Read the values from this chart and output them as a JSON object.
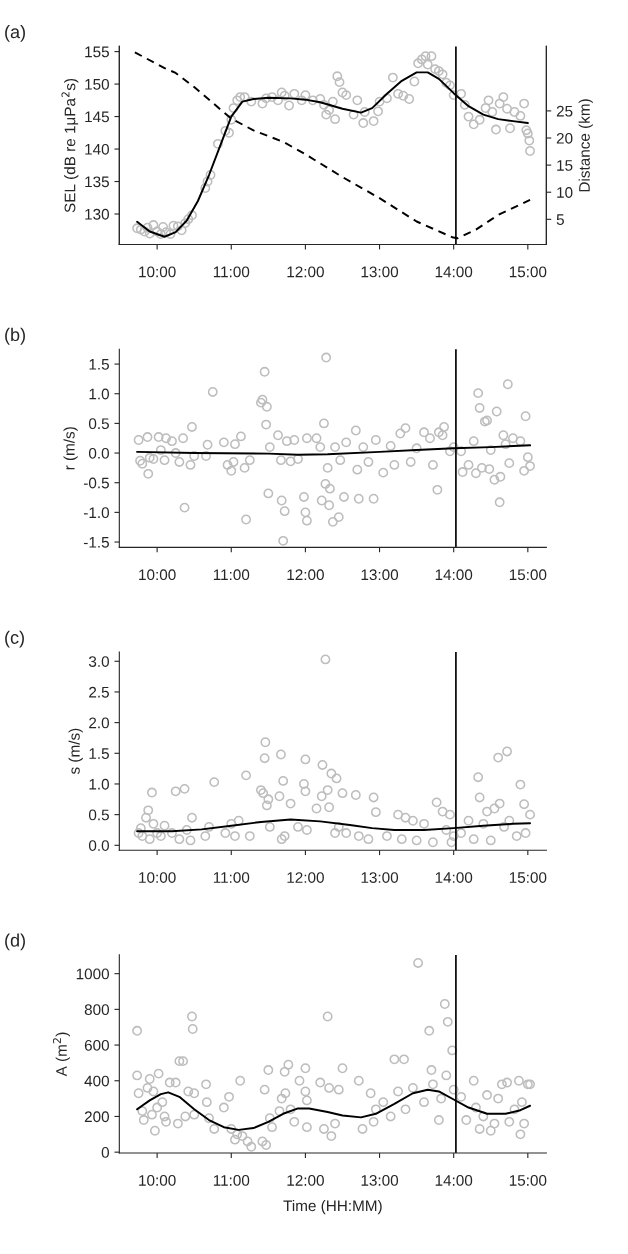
{
  "chart_data": [
    {
      "type": "scatter",
      "title": "(a)",
      "ylabel": "SEL (dB re 1μPa$^{2}$s)",
      "y2label": "Distance (km)",
      "xlim": [
        9.49,
        15.25
      ],
      "xticks": [
        {
          "value": 10,
          "label": "10:00"
        },
        {
          "value": 11,
          "label": "11:00"
        },
        {
          "value": 12,
          "label": "12:00"
        },
        {
          "value": 13,
          "label": "13:00"
        },
        {
          "value": 14,
          "label": "14:00"
        },
        {
          "value": 15,
          "label": "15:00"
        }
      ],
      "ylim": [
        125.3,
        155.8
      ],
      "yticks": [
        130,
        135,
        140,
        145,
        150,
        155
      ],
      "y2lim": [
        0.35,
        36.9
      ],
      "y2ticks": [
        5,
        10,
        15,
        20,
        25
      ],
      "grid": false,
      "legend": false,
      "ref_lines": [
        {
          "axis": "x",
          "value": 14.03,
          "color": "#000000"
        }
      ],
      "series": [
        {
          "marker": "circle",
          "color": "#bdbdbd",
          "x": [
            9.73,
            9.78,
            9.83,
            9.87,
            9.9,
            9.95,
            10.0,
            10.05,
            10.08,
            10.12,
            10.18,
            10.22,
            10.28,
            10.33,
            10.38,
            10.42,
            10.47,
            10.65,
            10.68,
            10.72,
            10.82,
            10.92,
            10.97,
            11.0,
            11.03,
            11.08,
            11.12,
            11.18,
            11.27,
            11.42,
            11.47,
            11.55,
            11.63,
            11.68,
            11.72,
            11.78,
            11.85,
            11.95,
            12.0,
            12.1,
            12.2,
            12.25,
            12.28,
            12.32,
            12.37,
            12.4,
            12.43,
            12.46,
            12.5,
            12.55,
            12.65,
            12.7,
            12.78,
            12.8,
            12.92,
            12.98,
            13.0,
            13.1,
            13.18,
            13.25,
            13.32,
            13.4,
            13.47,
            13.52,
            13.57,
            13.62,
            13.65,
            13.7,
            13.75,
            13.8,
            13.85,
            13.9,
            13.95,
            14.0,
            14.1,
            14.15,
            14.2,
            14.27,
            14.35,
            14.43,
            14.47,
            14.52,
            14.57,
            14.62,
            14.67,
            14.72,
            14.76,
            14.82,
            14.9,
            14.95,
            14.98,
            15.0,
            15.02,
            15.03
          ],
          "values": [
            127.8,
            127.6,
            127.3,
            127.9,
            127,
            128.3,
            127.3,
            126.9,
            128,
            127.2,
            126.9,
            128.2,
            128.1,
            127.5,
            128.6,
            129.2,
            129.8,
            134,
            135,
            136,
            140.8,
            142.8,
            142.5,
            144.5,
            146.3,
            147.5,
            148,
            148,
            147.3,
            147,
            147.8,
            148,
            147.5,
            148.7,
            148.2,
            146.7,
            148.5,
            147.5,
            148.3,
            147.5,
            147.7,
            146.8,
            145.3,
            146,
            147.3,
            144.6,
            151.2,
            150.3,
            148.7,
            148.3,
            145.3,
            147.5,
            144,
            145.7,
            144.3,
            145.8,
            147.3,
            147.8,
            151,
            148.5,
            148.2,
            147.7,
            150.4,
            153.2,
            153.8,
            154.3,
            153,
            154.3,
            152.3,
            152,
            151.5,
            150.2,
            149.8,
            148.3,
            148.5,
            146.8,
            145,
            143.8,
            144.5,
            146.3,
            147.5,
            145.7,
            143,
            147,
            148,
            146.2,
            143.2,
            145.7,
            145.1,
            147,
            142.9,
            142.4,
            141.3,
            139.7
          ]
        },
        {
          "type": "line",
          "color": "#000000",
          "x": [
            9.73,
            9.9,
            10.1,
            10.25,
            10.4,
            10.55,
            10.7,
            10.85,
            11.0,
            11.15,
            11.3,
            11.5,
            11.8,
            12.0,
            12.2,
            12.5,
            12.75,
            12.9,
            13.1,
            13.3,
            13.5,
            13.65,
            13.8,
            14.0,
            14.2,
            14.4,
            14.6,
            14.8,
            15.0
          ],
          "values": [
            128.8,
            127.3,
            126.5,
            127.2,
            129,
            132,
            136,
            140.5,
            145,
            147.3,
            147.7,
            147.9,
            147.8,
            147.6,
            147.2,
            146.2,
            145.6,
            146.3,
            148.5,
            150.5,
            151.8,
            151.8,
            150.8,
            148.6,
            146.6,
            145.3,
            144.6,
            144.3,
            144.0
          ]
        },
        {
          "type": "line",
          "axis": "y2",
          "line_style": "dashed",
          "color": "#000000",
          "x": [
            9.7,
            10.1,
            10.25,
            10.5,
            10.8,
            11.0,
            11.3,
            11.7,
            12.0,
            12.5,
            13.0,
            13.5,
            13.98,
            14.05,
            14.3,
            14.6,
            15.03
          ],
          "values": [
            35.8,
            32.9,
            32,
            29.4,
            25.9,
            23.6,
            21.4,
            19.3,
            17,
            12.8,
            8.9,
            4.6,
            1.7,
            1.5,
            3.1,
            5.8,
            8.6
          ]
        }
      ]
    },
    {
      "type": "scatter",
      "title": "(b)",
      "ylabel": "r (m/s)",
      "xlim": [
        9.49,
        15.25
      ],
      "xticks": [
        {
          "value": 10,
          "label": "10:00"
        },
        {
          "value": 11,
          "label": "11:00"
        },
        {
          "value": 12,
          "label": "12:00"
        },
        {
          "value": 13,
          "label": "13:00"
        },
        {
          "value": 14,
          "label": "14:00"
        },
        {
          "value": 15,
          "label": "15:00"
        }
      ],
      "ylim": [
        -1.59,
        1.75
      ],
      "yticks": [
        {
          "value": -1.5,
          "label": "-1.5"
        },
        {
          "value": -1.0,
          "label": "-1.0"
        },
        {
          "value": -0.5,
          "label": "-0.5"
        },
        {
          "value": 0,
          "label": "0.0"
        },
        {
          "value": 0.5,
          "label": "0.5"
        },
        {
          "value": 1.0,
          "label": "1.0"
        },
        {
          "value": 1.5,
          "label": "1.5"
        }
      ],
      "grid": false,
      "legend": false,
      "ref_lines": [
        {
          "axis": "x",
          "value": 14.03,
          "color": "#000000"
        }
      ],
      "series": [
        {
          "marker": "circle",
          "color": "#bdbdbd",
          "x": [
            9.75,
            9.77,
            9.8,
            9.87,
            9.88,
            9.9,
            9.95,
            10.02,
            10.05,
            10.1,
            10.12,
            10.2,
            10.25,
            10.3,
            10.35,
            10.37,
            10.45,
            10.47,
            10.5,
            10.66,
            10.68,
            10.75,
            10.9,
            10.95,
            11.0,
            11.03,
            11.05,
            11.13,
            11.18,
            11.2,
            11.25,
            11.4,
            11.42,
            11.45,
            11.47,
            11.48,
            11.5,
            11.52,
            11.63,
            11.67,
            11.68,
            11.7,
            11.72,
            11.75,
            11.8,
            11.85,
            11.9,
            11.98,
            12.0,
            12.02,
            12.02,
            12.15,
            12.2,
            12.22,
            12.25,
            12.27,
            12.28,
            12.3,
            12.32,
            12.33,
            12.37,
            12.4,
            12.45,
            12.47,
            12.52,
            12.55,
            12.68,
            12.7,
            12.72,
            12.78,
            12.85,
            12.92,
            12.95,
            13.05,
            13.15,
            13.2,
            13.28,
            13.35,
            13.42,
            13.5,
            13.6,
            13.68,
            13.72,
            13.78,
            13.8,
            13.85,
            13.87,
            13.95,
            14.0,
            14.1,
            14.12,
            14.2,
            14.27,
            14.3,
            14.33,
            14.35,
            14.38,
            14.42,
            14.45,
            14.48,
            14.5,
            14.55,
            14.58,
            14.62,
            14.63,
            14.67,
            14.7,
            14.73,
            14.75,
            14.8,
            14.9,
            14.95,
            14.97,
            15.0,
            15.03
          ],
          "values": [
            0.22,
            -0.13,
            -0.18,
            0.27,
            -0.35,
            -0.08,
            -0.1,
            0.27,
            0.05,
            -0.12,
            0.25,
            0.2,
            0,
            -0.15,
            0.25,
            -0.92,
            -0.2,
            0.44,
            -0.05,
            -0.05,
            0.14,
            1.03,
            0.18,
            -0.2,
            -0.3,
            -0.15,
            0.15,
            0.28,
            -0.25,
            -1.12,
            -0.12,
            0.85,
            0.9,
            1.37,
            0.48,
            0.78,
            -0.68,
            0.1,
            0.3,
            -0.12,
            -0.8,
            -1.48,
            -0.98,
            0.2,
            -0.14,
            0.22,
            -0.1,
            -0.74,
            -1.0,
            -1.14,
            0.25,
            0.25,
            0.1,
            -0.8,
            0.5,
            -0.52,
            1.61,
            -0.25,
            -0.88,
            -0.6,
            -1.16,
            0.1,
            -1.08,
            -0.12,
            -0.74,
            0.18,
            0.38,
            -0.28,
            -0.77,
            0.1,
            -0.15,
            -0.77,
            0.22,
            -0.33,
            0.12,
            -0.2,
            0.33,
            0.42,
            -0.15,
            0.08,
            0.35,
            0.25,
            -0.2,
            -0.62,
            0.35,
            0.3,
            0.44,
            0.03,
            0.1,
            0.03,
            -0.32,
            -0.2,
            0.2,
            -0.34,
            1.01,
            0.76,
            -0.25,
            0.53,
            0.55,
            -0.27,
            0.05,
            -0.45,
            0.7,
            -0.83,
            -0.4,
            0.3,
            0.15,
            1.16,
            -0.17,
            0.25,
            0.2,
            -0.3,
            0.62,
            -0.07,
            -0.22
          ]
        },
        {
          "type": "line",
          "color": "#000000",
          "x": [
            9.73,
            10.5,
            11.5,
            11.9,
            12.3,
            13.0,
            13.5,
            14.0,
            14.5,
            15.03
          ],
          "values": [
            0.02,
            0.0,
            -0.01,
            -0.03,
            -0.02,
            0.02,
            0.05,
            0.08,
            0.1,
            0.13
          ]
        }
      ]
    },
    {
      "type": "scatter",
      "title": "(c)",
      "ylabel": "s (m/s)",
      "xlim": [
        9.49,
        15.25
      ],
      "xticks": [
        {
          "value": 10,
          "label": "10:00"
        },
        {
          "value": 11,
          "label": "11:00"
        },
        {
          "value": 12,
          "label": "12:00"
        },
        {
          "value": 13,
          "label": "13:00"
        },
        {
          "value": 14,
          "label": "14:00"
        },
        {
          "value": 15,
          "label": "15:00"
        }
      ],
      "ylim": [
        -0.08,
        3.15
      ],
      "yticks": [
        {
          "value": 0,
          "label": "0.0"
        },
        {
          "value": 0.5,
          "label": "0.5"
        },
        {
          "value": 1.0,
          "label": "1.0"
        },
        {
          "value": 1.5,
          "label": "1.5"
        },
        {
          "value": 2.0,
          "label": "2.0"
        },
        {
          "value": 2.5,
          "label": "2.5"
        },
        {
          "value": 3.0,
          "label": "3.0"
        }
      ],
      "grid": false,
      "legend": false,
      "ref_lines": [
        {
          "axis": "x",
          "value": 14.03,
          "color": "#000000"
        }
      ],
      "series": [
        {
          "marker": "circle",
          "color": "#bdbdbd",
          "x": [
            9.75,
            9.78,
            9.8,
            9.85,
            9.88,
            9.9,
            9.93,
            9.95,
            10.0,
            10.05,
            10.1,
            10.2,
            10.25,
            10.3,
            10.37,
            10.4,
            10.45,
            10.47,
            10.65,
            10.7,
            10.77,
            10.92,
            11.0,
            11.05,
            11.1,
            11.2,
            11.25,
            11.4,
            11.43,
            11.45,
            11.46,
            11.48,
            11.5,
            11.52,
            11.65,
            11.67,
            11.68,
            11.7,
            11.72,
            11.8,
            11.9,
            11.98,
            12.0,
            12.0,
            12.02,
            12.15,
            12.22,
            12.23,
            12.27,
            12.3,
            12.32,
            12.35,
            12.4,
            12.42,
            12.45,
            12.5,
            12.55,
            12.68,
            12.72,
            12.85,
            12.92,
            12.95,
            13.1,
            13.25,
            13.3,
            13.35,
            13.45,
            13.5,
            13.6,
            13.72,
            13.77,
            13.85,
            13.9,
            13.95,
            13.97,
            14.0,
            14.1,
            14.2,
            14.27,
            14.33,
            14.35,
            14.4,
            14.45,
            14.5,
            14.55,
            14.6,
            14.62,
            14.68,
            14.72,
            14.75,
            14.85,
            14.9,
            14.95,
            14.97,
            15.03
          ],
          "values": [
            0.2,
            0.28,
            0.15,
            0.45,
            0.57,
            0.1,
            0.86,
            0.35,
            0.2,
            0.15,
            0.32,
            0.2,
            0.88,
            0.1,
            0.92,
            0.25,
            0.08,
            0.45,
            0.15,
            0.3,
            1.03,
            0.2,
            0.35,
            0.15,
            0.4,
            1.14,
            0.15,
            0.9,
            0.85,
            1.42,
            1.68,
            0.65,
            0.75,
            0.3,
            0.8,
            1.48,
            0.1,
            1.05,
            0.15,
            0.68,
            0.3,
            1.0,
            0.88,
            1.4,
            0.25,
            0.6,
            0.8,
            1.31,
            3.03,
            0.9,
            0.62,
            1.17,
            0.2,
            1.09,
            0.3,
            0.85,
            0.2,
            0.82,
            0.15,
            0.1,
            0.78,
            0.54,
            0.15,
            0.5,
            0.1,
            0.45,
            0.4,
            0.08,
            0.35,
            0.05,
            0.7,
            0.55,
            0.25,
            0.5,
            0.05,
            0.15,
            0.2,
            0.4,
            0.1,
            1.11,
            0.78,
            0.35,
            0.55,
            0.08,
            0.6,
            1.43,
            0.68,
            0.3,
            1.53,
            0.4,
            0.15,
            0.99,
            0.67,
            0.2,
            0.5
          ]
        },
        {
          "type": "line",
          "color": "#000000",
          "x": [
            9.73,
            10.2,
            10.6,
            11.0,
            11.4,
            11.8,
            12.2,
            12.6,
            12.9,
            13.2,
            13.6,
            14.0,
            14.4,
            14.8,
            15.03
          ],
          "values": [
            0.23,
            0.23,
            0.26,
            0.32,
            0.38,
            0.42,
            0.39,
            0.33,
            0.28,
            0.25,
            0.25,
            0.28,
            0.32,
            0.35,
            0.36
          ]
        }
      ]
    },
    {
      "type": "scatter",
      "title": "(d)",
      "ylabel": "A (m$^{2}$)",
      "xlabel": "Time (HH:MM)",
      "xlim": [
        9.49,
        15.25
      ],
      "xticks": [
        {
          "value": 10,
          "label": "10:00"
        },
        {
          "value": 11,
          "label": "11:00"
        },
        {
          "value": 12,
          "label": "12:00"
        },
        {
          "value": 13,
          "label": "13:00"
        },
        {
          "value": 14,
          "label": "14:00"
        },
        {
          "value": 15,
          "label": "15:00"
        }
      ],
      "ylim": [
        -5,
        1105
      ],
      "yticks": [
        0,
        200,
        400,
        600,
        800,
        1000
      ],
      "grid": false,
      "legend": false,
      "ref_lines": [
        {
          "axis": "x",
          "value": 14.03,
          "color": "#000000"
        }
      ],
      "series": [
        {
          "marker": "circle",
          "color": "#bdbdbd",
          "x": [
            9.73,
            9.73,
            9.75,
            9.8,
            9.82,
            9.87,
            9.9,
            9.93,
            9.95,
            9.97,
            10.0,
            10.02,
            10.07,
            10.1,
            10.12,
            10.17,
            10.25,
            10.28,
            10.3,
            10.35,
            10.38,
            10.42,
            10.47,
            10.48,
            10.5,
            10.5,
            10.66,
            10.67,
            10.7,
            10.77,
            10.9,
            10.97,
            11.0,
            11.05,
            11.08,
            11.12,
            11.15,
            11.22,
            11.27,
            11.42,
            11.45,
            11.47,
            11.5,
            11.52,
            11.55,
            11.65,
            11.68,
            11.72,
            11.73,
            11.77,
            11.8,
            11.85,
            11.92,
            12.0,
            12.0,
            12.02,
            12.02,
            12.2,
            12.25,
            12.3,
            12.32,
            12.35,
            12.4,
            12.45,
            12.5,
            12.72,
            12.77,
            12.88,
            12.92,
            12.95,
            13.05,
            13.15,
            13.2,
            13.25,
            13.33,
            13.35,
            13.45,
            13.52,
            13.6,
            13.67,
            13.7,
            13.72,
            13.8,
            13.83,
            13.88,
            13.9,
            13.92,
            13.98,
            14.0,
            14.1,
            14.17,
            14.27,
            14.3,
            14.35,
            14.4,
            14.45,
            14.5,
            14.55,
            14.6,
            14.65,
            14.72,
            14.75,
            14.82,
            14.88,
            14.9,
            14.92,
            14.95,
            15.0,
            15.03
          ],
          "values": [
            680,
            430,
            330,
            230,
            180,
            360,
            410,
            210,
            340,
            120,
            250,
            440,
            280,
            200,
            170,
            390,
            390,
            160,
            510,
            510,
            200,
            340,
            760,
            690,
            330,
            210,
            380,
            280,
            190,
            130,
            250,
            310,
            130,
            70,
            100,
            400,
            90,
            60,
            30,
            60,
            350,
            40,
            460,
            190,
            140,
            230,
            300,
            450,
            330,
            490,
            240,
            170,
            400,
            470,
            340,
            140,
            290,
            390,
            130,
            760,
            360,
            90,
            160,
            350,
            470,
            400,
            130,
            330,
            170,
            240,
            280,
            200,
            520,
            340,
            520,
            240,
            360,
            1060,
            280,
            680,
            460,
            380,
            180,
            300,
            830,
            430,
            730,
            570,
            350,
            310,
            180,
            400,
            250,
            130,
            200,
            320,
            120,
            160,
            300,
            380,
            390,
            170,
            240,
            400,
            100,
            280,
            160,
            380,
            380
          ]
        },
        {
          "type": "line",
          "color": "#000000",
          "x": [
            9.73,
            9.9,
            10.05,
            10.15,
            10.3,
            10.5,
            10.7,
            10.9,
            11.1,
            11.3,
            11.5,
            11.7,
            11.9,
            12.05,
            12.3,
            12.5,
            12.75,
            12.95,
            13.2,
            13.45,
            13.65,
            13.8,
            14.0,
            14.2,
            14.45,
            14.7,
            14.9,
            15.03
          ],
          "values": [
            240,
            290,
            325,
            335,
            310,
            240,
            180,
            140,
            125,
            135,
            170,
            215,
            245,
            245,
            225,
            205,
            195,
            215,
            270,
            330,
            350,
            340,
            295,
            250,
            215,
            215,
            235,
            260
          ]
        }
      ]
    }
  ]
}
